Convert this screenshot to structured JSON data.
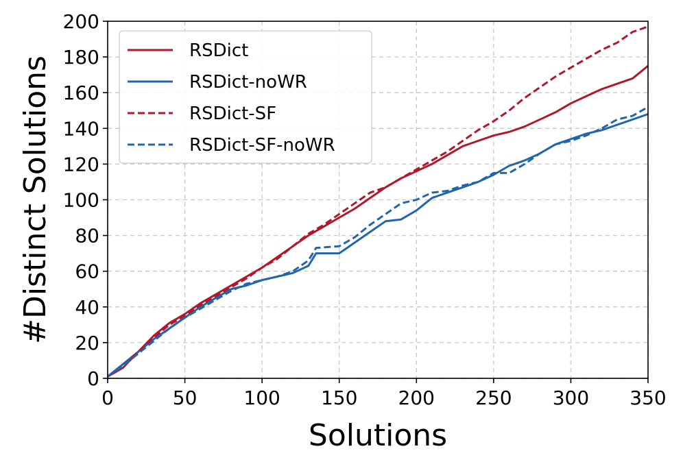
{
  "chart_data": {
    "type": "line",
    "xlabel": "Solutions",
    "ylabel": "#Distinct Solutions",
    "xlim": [
      0,
      350
    ],
    "ylim": [
      0,
      200
    ],
    "xticks": [
      0,
      50,
      100,
      150,
      200,
      250,
      300,
      350
    ],
    "yticks": [
      0,
      20,
      40,
      60,
      80,
      100,
      120,
      140,
      160,
      180,
      200
    ],
    "grid": true,
    "legend_position": "top-left",
    "series": [
      {
        "name": "RSDict",
        "color": "#b2182b",
        "dash": "solid",
        "x": [
          0,
          10,
          20,
          30,
          40,
          50,
          60,
          70,
          80,
          90,
          100,
          110,
          120,
          130,
          140,
          150,
          160,
          170,
          180,
          190,
          200,
          210,
          220,
          230,
          240,
          250,
          260,
          270,
          280,
          290,
          300,
          310,
          320,
          330,
          340,
          350
        ],
        "y": [
          1,
          6,
          15,
          24,
          31,
          36,
          42,
          47,
          52,
          57,
          62,
          68,
          74,
          80,
          85,
          90,
          95,
          101,
          107,
          112,
          116,
          120,
          125,
          130,
          133,
          136,
          138,
          141,
          145,
          149,
          154,
          158,
          162,
          165,
          168,
          175
        ]
      },
      {
        "name": "RSDict-noWR",
        "color": "#2166ac",
        "dash": "solid",
        "x": [
          0,
          10,
          20,
          30,
          40,
          50,
          60,
          70,
          80,
          90,
          100,
          110,
          120,
          130,
          135,
          150,
          160,
          170,
          180,
          190,
          200,
          210,
          220,
          230,
          240,
          250,
          260,
          270,
          280,
          290,
          300,
          310,
          320,
          330,
          340,
          350
        ],
        "y": [
          1,
          8,
          15,
          22,
          28,
          34,
          40,
          45,
          50,
          52,
          55,
          57,
          59,
          63,
          70,
          70,
          76,
          82,
          88,
          89,
          94,
          101,
          104,
          107,
          110,
          114,
          119,
          122,
          126,
          131,
          134,
          137,
          139,
          142,
          145,
          148
        ]
      },
      {
        "name": "RSDict-SF",
        "color": "#b2182b",
        "dash": "dashed",
        "x": [
          0,
          10,
          20,
          30,
          40,
          50,
          60,
          70,
          80,
          90,
          100,
          110,
          120,
          130,
          140,
          150,
          160,
          170,
          180,
          190,
          200,
          210,
          220,
          230,
          240,
          250,
          260,
          270,
          280,
          290,
          300,
          310,
          320,
          330,
          340,
          350
        ],
        "y": [
          1,
          7,
          15,
          23,
          30,
          35,
          41,
          46,
          51,
          56,
          62,
          67,
          74,
          81,
          86,
          92,
          98,
          104,
          107,
          112,
          117,
          122,
          127,
          133,
          139,
          144,
          150,
          157,
          163,
          169,
          174,
          179,
          184,
          188,
          194,
          197
        ]
      },
      {
        "name": "RSDict-SF-noWR",
        "color": "#2166ac",
        "dash": "dashed",
        "x": [
          0,
          10,
          20,
          30,
          40,
          50,
          60,
          70,
          80,
          90,
          100,
          110,
          120,
          130,
          135,
          150,
          160,
          170,
          180,
          190,
          200,
          210,
          220,
          230,
          240,
          250,
          260,
          270,
          280,
          290,
          300,
          310,
          320,
          330,
          340,
          350
        ],
        "y": [
          1,
          7,
          14,
          21,
          28,
          34,
          39,
          44,
          49,
          53,
          55,
          57,
          60,
          66,
          73,
          74,
          79,
          86,
          92,
          98,
          100,
          104,
          105,
          108,
          110,
          115,
          115,
          120,
          126,
          131,
          133,
          136,
          140,
          145,
          147,
          152
        ]
      }
    ]
  }
}
